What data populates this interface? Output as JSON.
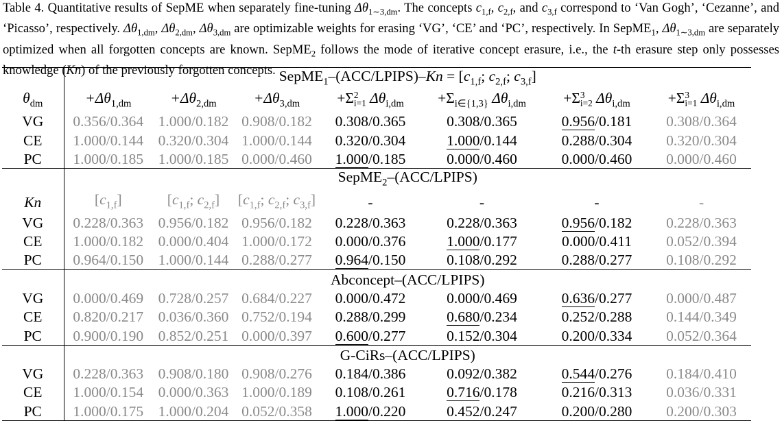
{
  "caption": [
    "Table 4. Quantitative results of SepME when separately fine-tuning ",
    {
      "b": "Δθ",
      "sub": "1∼3,dm"
    },
    ". The concepts ",
    {
      "b": "c",
      "sub": "1,f"
    },
    ", ",
    {
      "b": "c",
      "sub": "2,f"
    },
    ", and ",
    {
      "b": "c",
      "sub": "3,f"
    },
    " correspond to ‘Van Gogh’, ‘Cezanne’, and ‘Picasso’, respectively. ",
    {
      "b": "Δθ",
      "sub": "1,dm"
    },
    ", ",
    {
      "b": "Δθ",
      "sub": "2,dm"
    },
    ", ",
    {
      "b": "Δθ",
      "sub": "3,dm"
    },
    " are optimizable weights for erasing ‘VG’, ‘CE’ and ‘PC’, respectively. In ",
    {
      "b": "SepME",
      "sub": "1"
    },
    ", ",
    {
      "b": "Δθ",
      "sub": "1∼3,dm"
    },
    " are separately optimized when all forgotten concepts are known. ",
    {
      "b": "SepME",
      "sub": "2"
    },
    " follows the mode of iterative concept erasure, i.e., the ",
    {
      "b": "t"
    },
    "-th erasure step only possesses knowledge (",
    {
      "b": "Kn"
    },
    ") of the previously forgotten concepts."
  ],
  "table": {
    "grey_columns": [
      0,
      1,
      2,
      6
    ],
    "sections": [
      {
        "title": [
          {
            "b": "SepME",
            "sub": "1"
          },
          "–(ACC/LPIPS)–",
          {
            "b": "Kn"
          },
          " = [",
          {
            "b": "c",
            "sub": "1,f"
          },
          "; ",
          {
            "b": "c",
            "sub": "2,f"
          },
          "; ",
          {
            "b": "c",
            "sub": "3,f"
          },
          "]"
        ],
        "header_grey": false,
        "header": [
          [
            {
              "b": "θ",
              "sub": "dm"
            }
          ],
          [
            {
              "b": "+Δθ",
              "sub": "1,dm"
            }
          ],
          [
            {
              "b": "+Δθ",
              "sub": "2,dm"
            }
          ],
          [
            {
              "b": "+Δθ",
              "sub": "3,dm"
            }
          ],
          [
            {
              "b": "+Σ",
              "sub": "i=1",
              "sup": "2"
            },
            " ",
            {
              "b": "Δθ",
              "sub": "i,dm"
            }
          ],
          [
            {
              "b": "+Σ",
              "sub": "i∈{1,3}"
            },
            " ",
            {
              "b": "Δθ",
              "sub": "i,dm"
            }
          ],
          [
            {
              "b": "+Σ",
              "sub": "i=2",
              "sup": "3"
            },
            " ",
            {
              "b": "Δθ",
              "sub": "i,dm"
            }
          ],
          [
            {
              "b": "+Σ",
              "sub": "i=1",
              "sup": "3"
            },
            " ",
            {
              "b": "Δθ",
              "sub": "i,dm"
            }
          ]
        ],
        "rows": [
          {
            "label": "VG",
            "cells": [
              "0.356/0.364",
              "1.000/0.182",
              "0.908/0.182",
              "0.308/0.365",
              "0.308/0.365",
              "0.956/0.181",
              "0.308/0.364"
            ],
            "underline": 5
          },
          {
            "label": "CE",
            "cells": [
              "1.000/0.144",
              "0.320/0.304",
              "1.000/0.144",
              "0.320/0.304",
              "1.000/0.144",
              "0.288/0.304",
              "0.320/0.304"
            ],
            "underline": 4
          },
          {
            "label": "PC",
            "cells": [
              "1.000/0.185",
              "1.000/0.185",
              "0.000/0.460",
              "1.000/0.185",
              "0.000/0.460",
              "0.000/0.460",
              "0.000/0.460"
            ],
            "underline": 3
          }
        ]
      },
      {
        "title": [
          {
            "b": "SepME",
            "sub": "2"
          },
          "–(ACC/LPIPS)"
        ],
        "header_grey": true,
        "header": [
          [
            {
              "b": "Kn"
            }
          ],
          [
            "[",
            {
              "b": "c",
              "sub": "1,f"
            },
            "]"
          ],
          [
            "[",
            {
              "b": "c",
              "sub": "1,f"
            },
            "; ",
            {
              "b": "c",
              "sub": "2,f"
            },
            "]"
          ],
          [
            "[",
            {
              "b": "c",
              "sub": "1,f"
            },
            "; ",
            {
              "b": "c",
              "sub": "2,f"
            },
            "; ",
            {
              "b": "c",
              "sub": "3,f"
            },
            "]"
          ],
          [
            "-"
          ],
          [
            "-"
          ],
          [
            "-"
          ],
          [
            "-"
          ]
        ],
        "rows": [
          {
            "label": "VG",
            "cells": [
              "0.228/0.363",
              "0.956/0.182",
              "0.956/0.182",
              "0.228/0.363",
              "0.228/0.363",
              "0.956/0.182",
              "0.228/0.363"
            ],
            "underline": 5
          },
          {
            "label": "CE",
            "cells": [
              "1.000/0.182",
              "0.000/0.404",
              "1.000/0.172",
              "0.000/0.376",
              "1.000/0.177",
              "0.000/0.411",
              "0.052/0.394"
            ],
            "underline": 4
          },
          {
            "label": "PC",
            "cells": [
              "0.964/0.150",
              "1.000/0.144",
              "0.288/0.277",
              "0.964/0.150",
              "0.108/0.292",
              "0.288/0.277",
              "0.108/0.292"
            ],
            "underline": 3
          }
        ]
      },
      {
        "title": [
          "Abconcept–(ACC/LPIPS)"
        ],
        "rows": [
          {
            "label": "VG",
            "cells": [
              "0.000/0.469",
              "0.728/0.257",
              "0.684/0.227",
              "0.000/0.472",
              "0.000/0.469",
              "0.636/0.277",
              "0.000/0.487"
            ],
            "underline": 5
          },
          {
            "label": "CE",
            "cells": [
              "0.820/0.217",
              "0.036/0.360",
              "0.752/0.194",
              "0.288/0.299",
              "0.680/0.234",
              "0.252/0.288",
              "0.144/0.349"
            ],
            "underline": 4
          },
          {
            "label": "PC",
            "cells": [
              "0.900/0.190",
              "0.852/0.251",
              "0.000/0.397",
              "0.600/0.277",
              "0.152/0.304",
              "0.200/0.334",
              "0.052/0.364"
            ],
            "underline": 3
          }
        ]
      },
      {
        "title": [
          "G-CiRs–(ACC/LPIPS)"
        ],
        "rows": [
          {
            "label": "VG",
            "cells": [
              "0.228/0.363",
              "0.908/0.180",
              "0.908/0.276",
              "0.184/0.386",
              "0.092/0.382",
              "0.544/0.276",
              "0.184/0.410"
            ],
            "underline": 5
          },
          {
            "label": "CE",
            "cells": [
              "1.000/0.154",
              "0.000/0.363",
              "1.000/0.189",
              "0.108/0.261",
              "0.716/0.178",
              "0.216/0.313",
              "0.036/0.331"
            ],
            "underline": 4
          },
          {
            "label": "PC",
            "cells": [
              "1.000/0.175",
              "1.000/0.204",
              "0.052/0.358",
              "1.000/0.220",
              "0.452/0.247",
              "0.200/0.280",
              "0.200/0.303"
            ],
            "underline": 3
          }
        ]
      }
    ]
  }
}
